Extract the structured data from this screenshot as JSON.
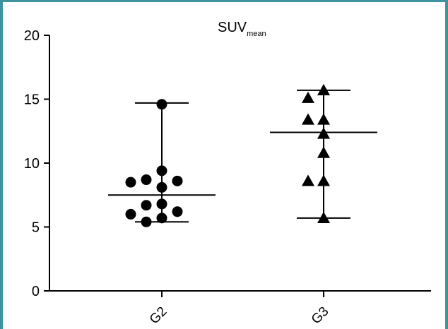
{
  "chart_data": {
    "type": "scatter",
    "title": "SUV",
    "title_subscript": "mean",
    "xlabel": "",
    "ylabel": "",
    "categories": [
      "G2",
      "G3"
    ],
    "ylim": [
      0,
      20
    ],
    "yticks": [
      0,
      5,
      10,
      15,
      20
    ],
    "ytick_labels": [
      "0",
      "5",
      "10",
      "15",
      "20"
    ],
    "grid": false,
    "legend": "none",
    "groups": [
      {
        "category": "G2",
        "marker": "circle",
        "values": [
          14.6,
          9.4,
          8.7,
          8.6,
          8.5,
          8.1,
          6.8,
          6.7,
          6.2,
          6.0,
          5.7,
          5.4
        ],
        "center": 7.5,
        "whisker_low": 5.4,
        "whisker_high": 14.7
      },
      {
        "category": "G3",
        "marker": "triangle",
        "values": [
          15.7,
          15.1,
          13.4,
          13.4,
          12.3,
          10.8,
          8.6,
          8.6,
          5.7
        ],
        "center": 12.4,
        "whisker_low": 5.7,
        "whisker_high": 15.7
      }
    ],
    "colors": {
      "marker": "#000000",
      "frame": "#3f93a1"
    }
  }
}
